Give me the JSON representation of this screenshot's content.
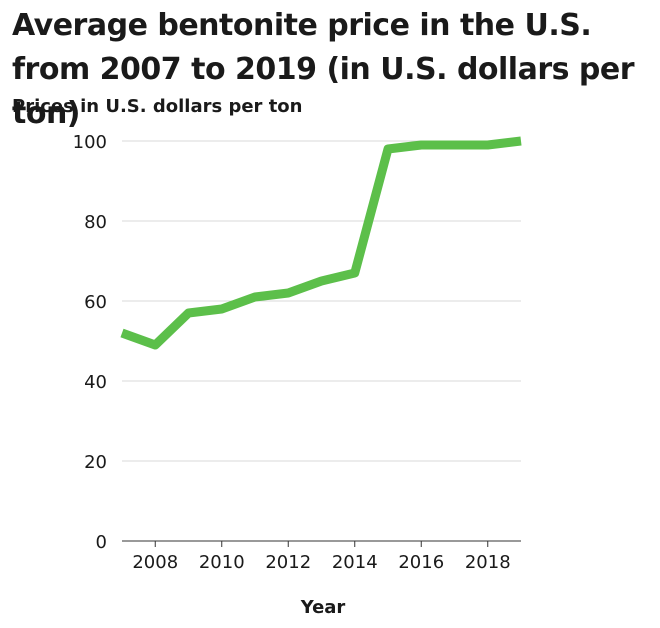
{
  "chart_data": {
    "type": "line",
    "title": "Average bentonite price in the U.S. from 2007 to 2019 (in U.S. dollars per ton)",
    "xlabel": "Year",
    "ylabel": "Prices in U.S. dollars per ton",
    "x": [
      2007,
      2008,
      2009,
      2010,
      2011,
      2012,
      2013,
      2014,
      2015,
      2016,
      2017,
      2018,
      2019
    ],
    "series": [
      {
        "values": [
          52,
          49,
          57,
          58,
          61,
          62,
          65,
          67,
          98,
          99,
          99,
          99,
          100
        ]
      }
    ],
    "xlim": [
      2007,
      2019
    ],
    "ylim": [
      0,
      100
    ],
    "x_ticks": [
      "2008",
      "2010",
      "2012",
      "2014",
      "2016",
      "2018"
    ],
    "y_ticks": [
      "0",
      "20",
      "40",
      "60",
      "80",
      "100"
    ],
    "grid": "horizontal",
    "line_color": "#5cbf4a",
    "grid_color": "#d9d9d9"
  }
}
